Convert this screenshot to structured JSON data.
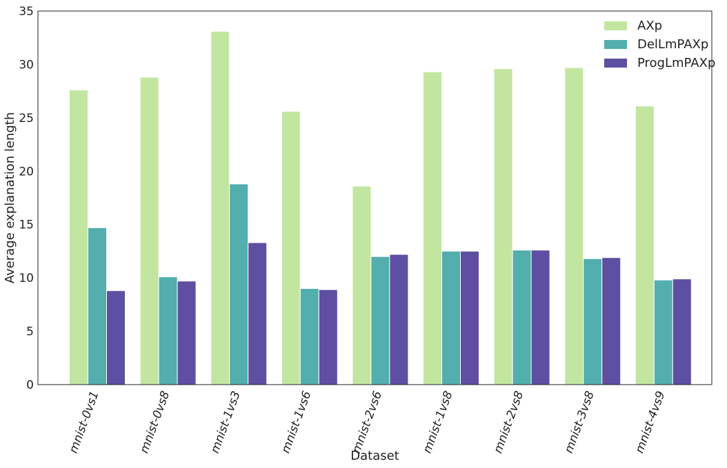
{
  "chart_data": {
    "type": "bar",
    "title": "",
    "xlabel": "Dataset",
    "ylabel": "Average explanation length",
    "ylim": [
      0,
      35
    ],
    "yticks": [
      0,
      5,
      10,
      15,
      20,
      25,
      30,
      35
    ],
    "grid": false,
    "legend_position": "top-right",
    "categories": [
      "mnist-0vs1",
      "mnist-0vs8",
      "mnist-1vs3",
      "mnist-1vs6",
      "mnist-2vs6",
      "mnist-1vs8",
      "mnist-2vs8",
      "mnist-3vs8",
      "mnist-4vs9"
    ],
    "series": [
      {
        "name": "AXp",
        "color": "#c2e6a0",
        "values": [
          27.6,
          28.8,
          33.1,
          25.6,
          18.6,
          29.3,
          29.6,
          29.7,
          26.1
        ]
      },
      {
        "name": "DelLmPAXp",
        "color": "#53aeae",
        "values": [
          14.7,
          10.1,
          18.8,
          9.0,
          12.0,
          12.5,
          12.6,
          11.8,
          9.8
        ]
      },
      {
        "name": "ProgLmPAXp",
        "color": "#5e4fa2",
        "values": [
          8.8,
          9.7,
          13.3,
          8.9,
          12.2,
          12.5,
          12.6,
          11.9,
          9.9
        ]
      }
    ]
  }
}
